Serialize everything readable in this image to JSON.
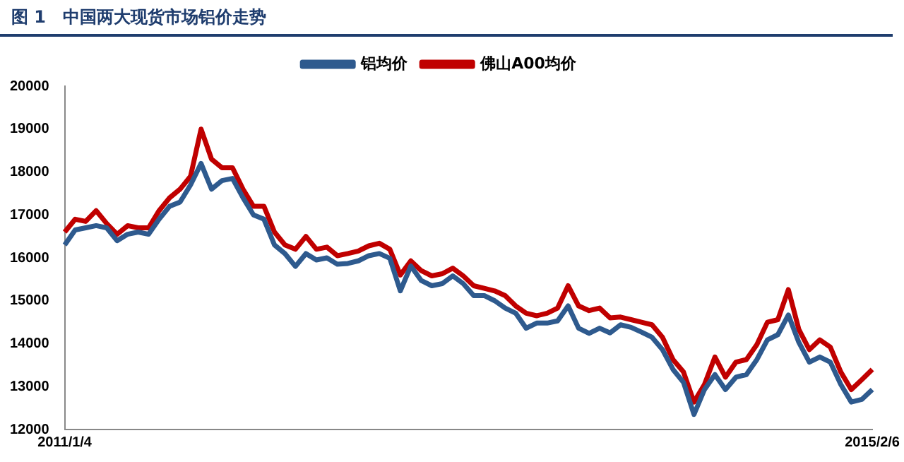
{
  "chart_data": {
    "type": "line",
    "title": "图 1　中国两大现货市场铝价走势",
    "categories": [
      "2011/1/4",
      null,
      null,
      null,
      null,
      null,
      null,
      null,
      null,
      null,
      null,
      null,
      null,
      null,
      null,
      null,
      null,
      null,
      null,
      null,
      null,
      null,
      null,
      null,
      null,
      null,
      null,
      null,
      null,
      null,
      null,
      null,
      null,
      null,
      null,
      null,
      null,
      null,
      null,
      null,
      null,
      null,
      null,
      null,
      null,
      null,
      null,
      null,
      null,
      null,
      null,
      null,
      null,
      null,
      null,
      null,
      null,
      null,
      null,
      null,
      null,
      null,
      null,
      null,
      null,
      null,
      null,
      null,
      null,
      null,
      null,
      null,
      null,
      null,
      null,
      null,
      null,
      "2015/2/6"
    ],
    "series": [
      {
        "name": "铝均价",
        "color": "#2e5a8e",
        "values": [
          16300,
          16650,
          16700,
          16750,
          16700,
          16400,
          16550,
          16600,
          16550,
          16900,
          17200,
          17300,
          17700,
          18200,
          17600,
          17800,
          17850,
          17400,
          17000,
          16900,
          16300,
          16100,
          15800,
          16100,
          15950,
          16000,
          15850,
          15870,
          15930,
          16050,
          16100,
          15990,
          15230,
          15810,
          15470,
          15350,
          15400,
          15580,
          15400,
          15120,
          15120,
          15000,
          14830,
          14710,
          14360,
          14480,
          14480,
          14530,
          14880,
          14360,
          14240,
          14360,
          14250,
          14440,
          14380,
          14270,
          14150,
          13860,
          13400,
          13100,
          12350,
          12930,
          13280,
          12930,
          13220,
          13280,
          13630,
          14090,
          14210,
          14670,
          14030,
          13570,
          13690,
          13570,
          13050,
          12640,
          12700,
          12930
        ]
      },
      {
        "name": "佛山A00均价",
        "color": "#c00000",
        "values": [
          16600,
          16900,
          16850,
          17100,
          16800,
          16550,
          16750,
          16700,
          16700,
          17100,
          17400,
          17600,
          17900,
          19000,
          18300,
          18100,
          18100,
          17600,
          17200,
          17200,
          16600,
          16300,
          16200,
          16500,
          16200,
          16250,
          16050,
          16100,
          16160,
          16280,
          16340,
          16200,
          15600,
          15930,
          15700,
          15580,
          15630,
          15760,
          15580,
          15350,
          15290,
          15230,
          15120,
          14880,
          14710,
          14650,
          14710,
          14830,
          15350,
          14880,
          14770,
          14830,
          14600,
          14620,
          14560,
          14500,
          14440,
          14150,
          13630,
          13340,
          12640,
          13050,
          13690,
          13220,
          13570,
          13630,
          13980,
          14500,
          14560,
          15260,
          14330,
          13860,
          14090,
          13920,
          13340,
          12930,
          13160,
          13400
        ]
      }
    ],
    "ylim": [
      12000,
      20000
    ],
    "yticks": [
      12000,
      13000,
      14000,
      15000,
      16000,
      17000,
      18000,
      19000,
      20000
    ],
    "grid": false,
    "legend": "top",
    "marker": "none",
    "line_style": "solid"
  }
}
